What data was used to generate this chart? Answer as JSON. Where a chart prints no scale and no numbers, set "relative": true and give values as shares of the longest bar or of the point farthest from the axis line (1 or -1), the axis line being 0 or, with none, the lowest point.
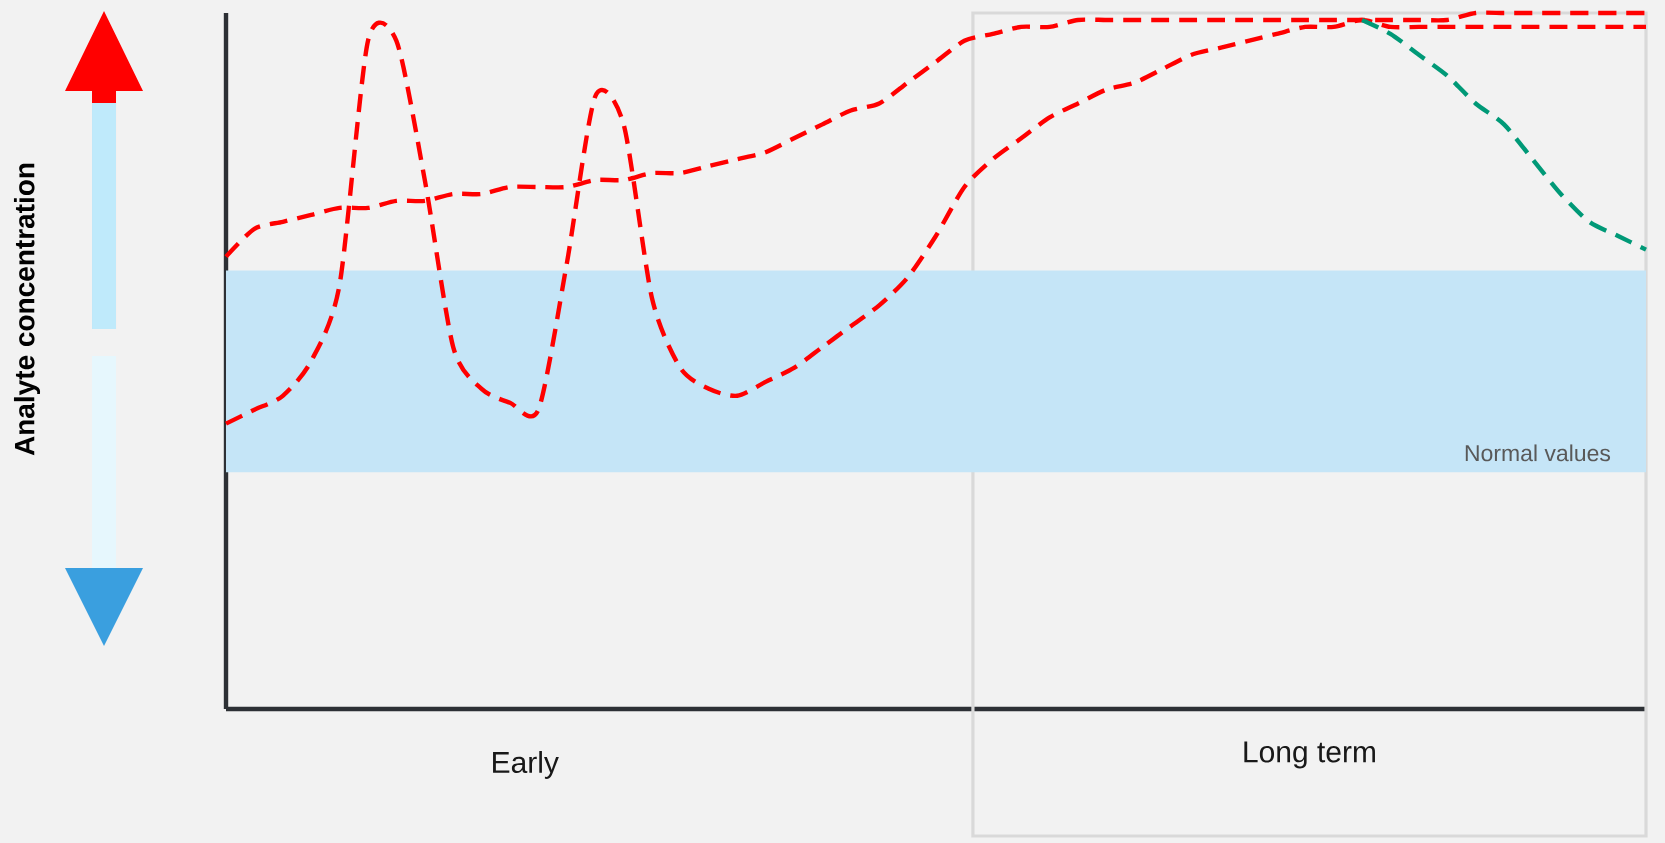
{
  "chart_data": {
    "type": "line",
    "relative": true,
    "line_style": "dashed",
    "marker": "none",
    "categories": [
      null,
      null,
      null,
      null,
      null,
      null,
      null,
      null,
      null,
      null,
      null,
      null,
      null,
      null,
      null,
      null,
      null,
      null,
      null,
      null,
      null,
      null,
      null,
      null,
      null,
      null,
      null,
      null,
      null,
      null,
      null,
      null,
      null,
      null,
      null,
      null,
      null,
      null,
      null,
      null,
      null,
      null,
      null,
      null,
      null,
      null,
      null,
      null,
      null,
      null,
      null
    ],
    "series": [
      {
        "color": "#ff0000",
        "values": [
          0.65,
          0.69,
          0.7,
          0.71,
          0.72,
          0.72,
          0.73,
          0.73,
          0.74,
          0.74,
          0.75,
          0.75,
          0.75,
          0.76,
          0.76,
          0.77,
          0.77,
          0.78,
          0.79,
          0.8,
          0.82,
          0.84,
          0.86,
          0.87,
          0.9,
          0.93,
          0.96,
          0.97,
          0.98,
          0.98,
          0.99,
          0.99,
          0.99,
          0.99,
          0.99,
          0.99,
          0.99,
          0.99,
          0.99,
          0.99,
          0.99,
          0.99,
          0.99,
          0.99,
          1.0,
          1.0,
          1.0,
          1.0,
          1.0,
          1.0,
          1.0
        ]
      },
      {
        "color": "#ff0000",
        "values": [
          0.41,
          0.43,
          0.45,
          0.5,
          0.61,
          0.96,
          0.96,
          0.76,
          0.52,
          0.46,
          0.44,
          0.43,
          0.64,
          0.88,
          0.84,
          0.59,
          0.49,
          0.46,
          0.45,
          0.47,
          0.49,
          0.52,
          0.55,
          0.58,
          0.62,
          0.68,
          0.75,
          0.79,
          0.82,
          0.85,
          0.87,
          0.89,
          0.9,
          0.92,
          0.94,
          0.95,
          0.96,
          0.97,
          0.98,
          0.98,
          0.99,
          0.98,
          0.98,
          0.98,
          0.98,
          0.98,
          0.98,
          0.98,
          0.98,
          0.98,
          0.98
        ]
      },
      {
        "color": "#009977",
        "values": [
          null,
          null,
          null,
          null,
          null,
          null,
          null,
          null,
          null,
          null,
          null,
          null,
          null,
          null,
          null,
          null,
          null,
          null,
          null,
          null,
          null,
          null,
          null,
          null,
          null,
          null,
          null,
          null,
          null,
          null,
          null,
          null,
          null,
          null,
          null,
          null,
          null,
          null,
          null,
          null,
          0.99,
          0.97,
          0.94,
          0.91,
          0.87,
          0.84,
          0.79,
          0.74,
          0.7,
          0.68,
          0.66
        ]
      }
    ],
    "bands": [
      {
        "axis": "y",
        "from": 0.34,
        "to": 0.63,
        "label": "Normal values",
        "color": "#c5e5f7"
      }
    ],
    "annotations": [
      "Early",
      "Long term",
      "Analyte concentration"
    ]
  }
}
